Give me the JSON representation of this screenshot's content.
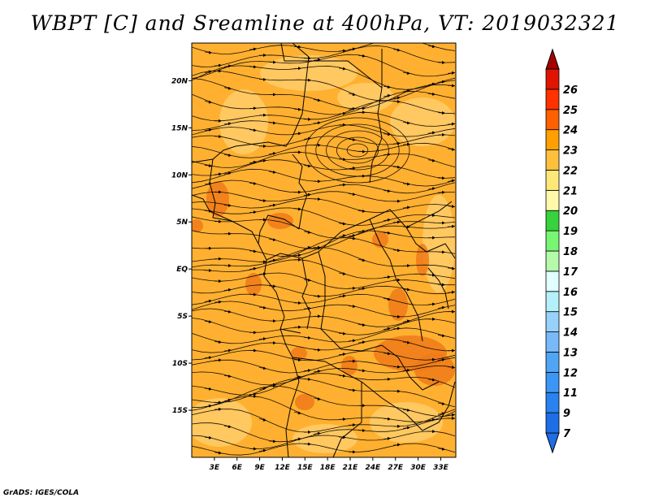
{
  "title": "WBPT [C] and Sreamline at 400hPa, VT: 2019032321",
  "credit": "GrADS: IGES/COLA",
  "map": {
    "lon_range": [
      0,
      35
    ],
    "lat_range": [
      -20,
      24
    ],
    "lon_ticks": [
      {
        "value": 3,
        "label": "3E"
      },
      {
        "value": 6,
        "label": "6E"
      },
      {
        "value": 9,
        "label": "9E"
      },
      {
        "value": 12,
        "label": "12E"
      },
      {
        "value": 15,
        "label": "15E"
      },
      {
        "value": 18,
        "label": "18E"
      },
      {
        "value": 21,
        "label": "21E"
      },
      {
        "value": 24,
        "label": "24E"
      },
      {
        "value": 27,
        "label": "27E"
      },
      {
        "value": 30,
        "label": "30E"
      },
      {
        "value": 33,
        "label": "33E"
      }
    ],
    "lat_ticks": [
      {
        "value": 20,
        "label": "20N"
      },
      {
        "value": 15,
        "label": "15N"
      },
      {
        "value": 10,
        "label": "10N"
      },
      {
        "value": 5,
        "label": "5N"
      },
      {
        "value": 0,
        "label": "EQ"
      },
      {
        "value": -5,
        "label": "5S"
      },
      {
        "value": -10,
        "label": "10S"
      },
      {
        "value": -15,
        "label": "15S"
      }
    ]
  },
  "colorbar": {
    "levels": [
      {
        "label": "7",
        "color": "#1e6ee6"
      },
      {
        "label": "9",
        "color": "#2882f0"
      },
      {
        "label": "11",
        "color": "#3c96f5"
      },
      {
        "label": "12",
        "color": "#50a5f5"
      },
      {
        "label": "13",
        "color": "#78b9fa"
      },
      {
        "label": "14",
        "color": "#96d2fa"
      },
      {
        "label": "15",
        "color": "#b4f0fa"
      },
      {
        "label": "16",
        "color": "#e1ffff"
      },
      {
        "label": "17",
        "color": "#b4faaa"
      },
      {
        "label": "18",
        "color": "#78f573"
      },
      {
        "label": "19",
        "color": "#37d23c"
      },
      {
        "label": "20",
        "color": "#fffaaa"
      },
      {
        "label": "21",
        "color": "#ffe878"
      },
      {
        "label": "22",
        "color": "#ffc03c"
      },
      {
        "label": "23",
        "color": "#ffa000"
      },
      {
        "label": "24",
        "color": "#ff6000"
      },
      {
        "label": "25",
        "color": "#ff3200"
      },
      {
        "label": "26",
        "color": "#e11400"
      }
    ],
    "top_color": "#a50000"
  },
  "field": {
    "base_color": "#ffb030",
    "light_color": "#ffd070",
    "dark_color": "#f07a18"
  }
}
